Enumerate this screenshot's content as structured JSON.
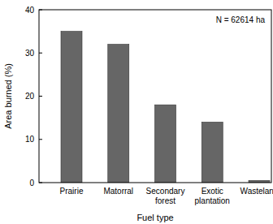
{
  "chart_data": {
    "type": "bar",
    "xlabel": "Fuel type",
    "ylabel": "Area burned (%)",
    "annotation": "N = 62614 ha",
    "categories": [
      "Prairie",
      "Matorral",
      "Secondary forest",
      "Exotic plantation",
      "Wasteland"
    ],
    "values": [
      35,
      32,
      18,
      14,
      0.5
    ],
    "color": "#666666",
    "ylim": [
      0,
      40
    ],
    "yticks": [
      0,
      10,
      20,
      30,
      40
    ],
    "grid": false
  }
}
